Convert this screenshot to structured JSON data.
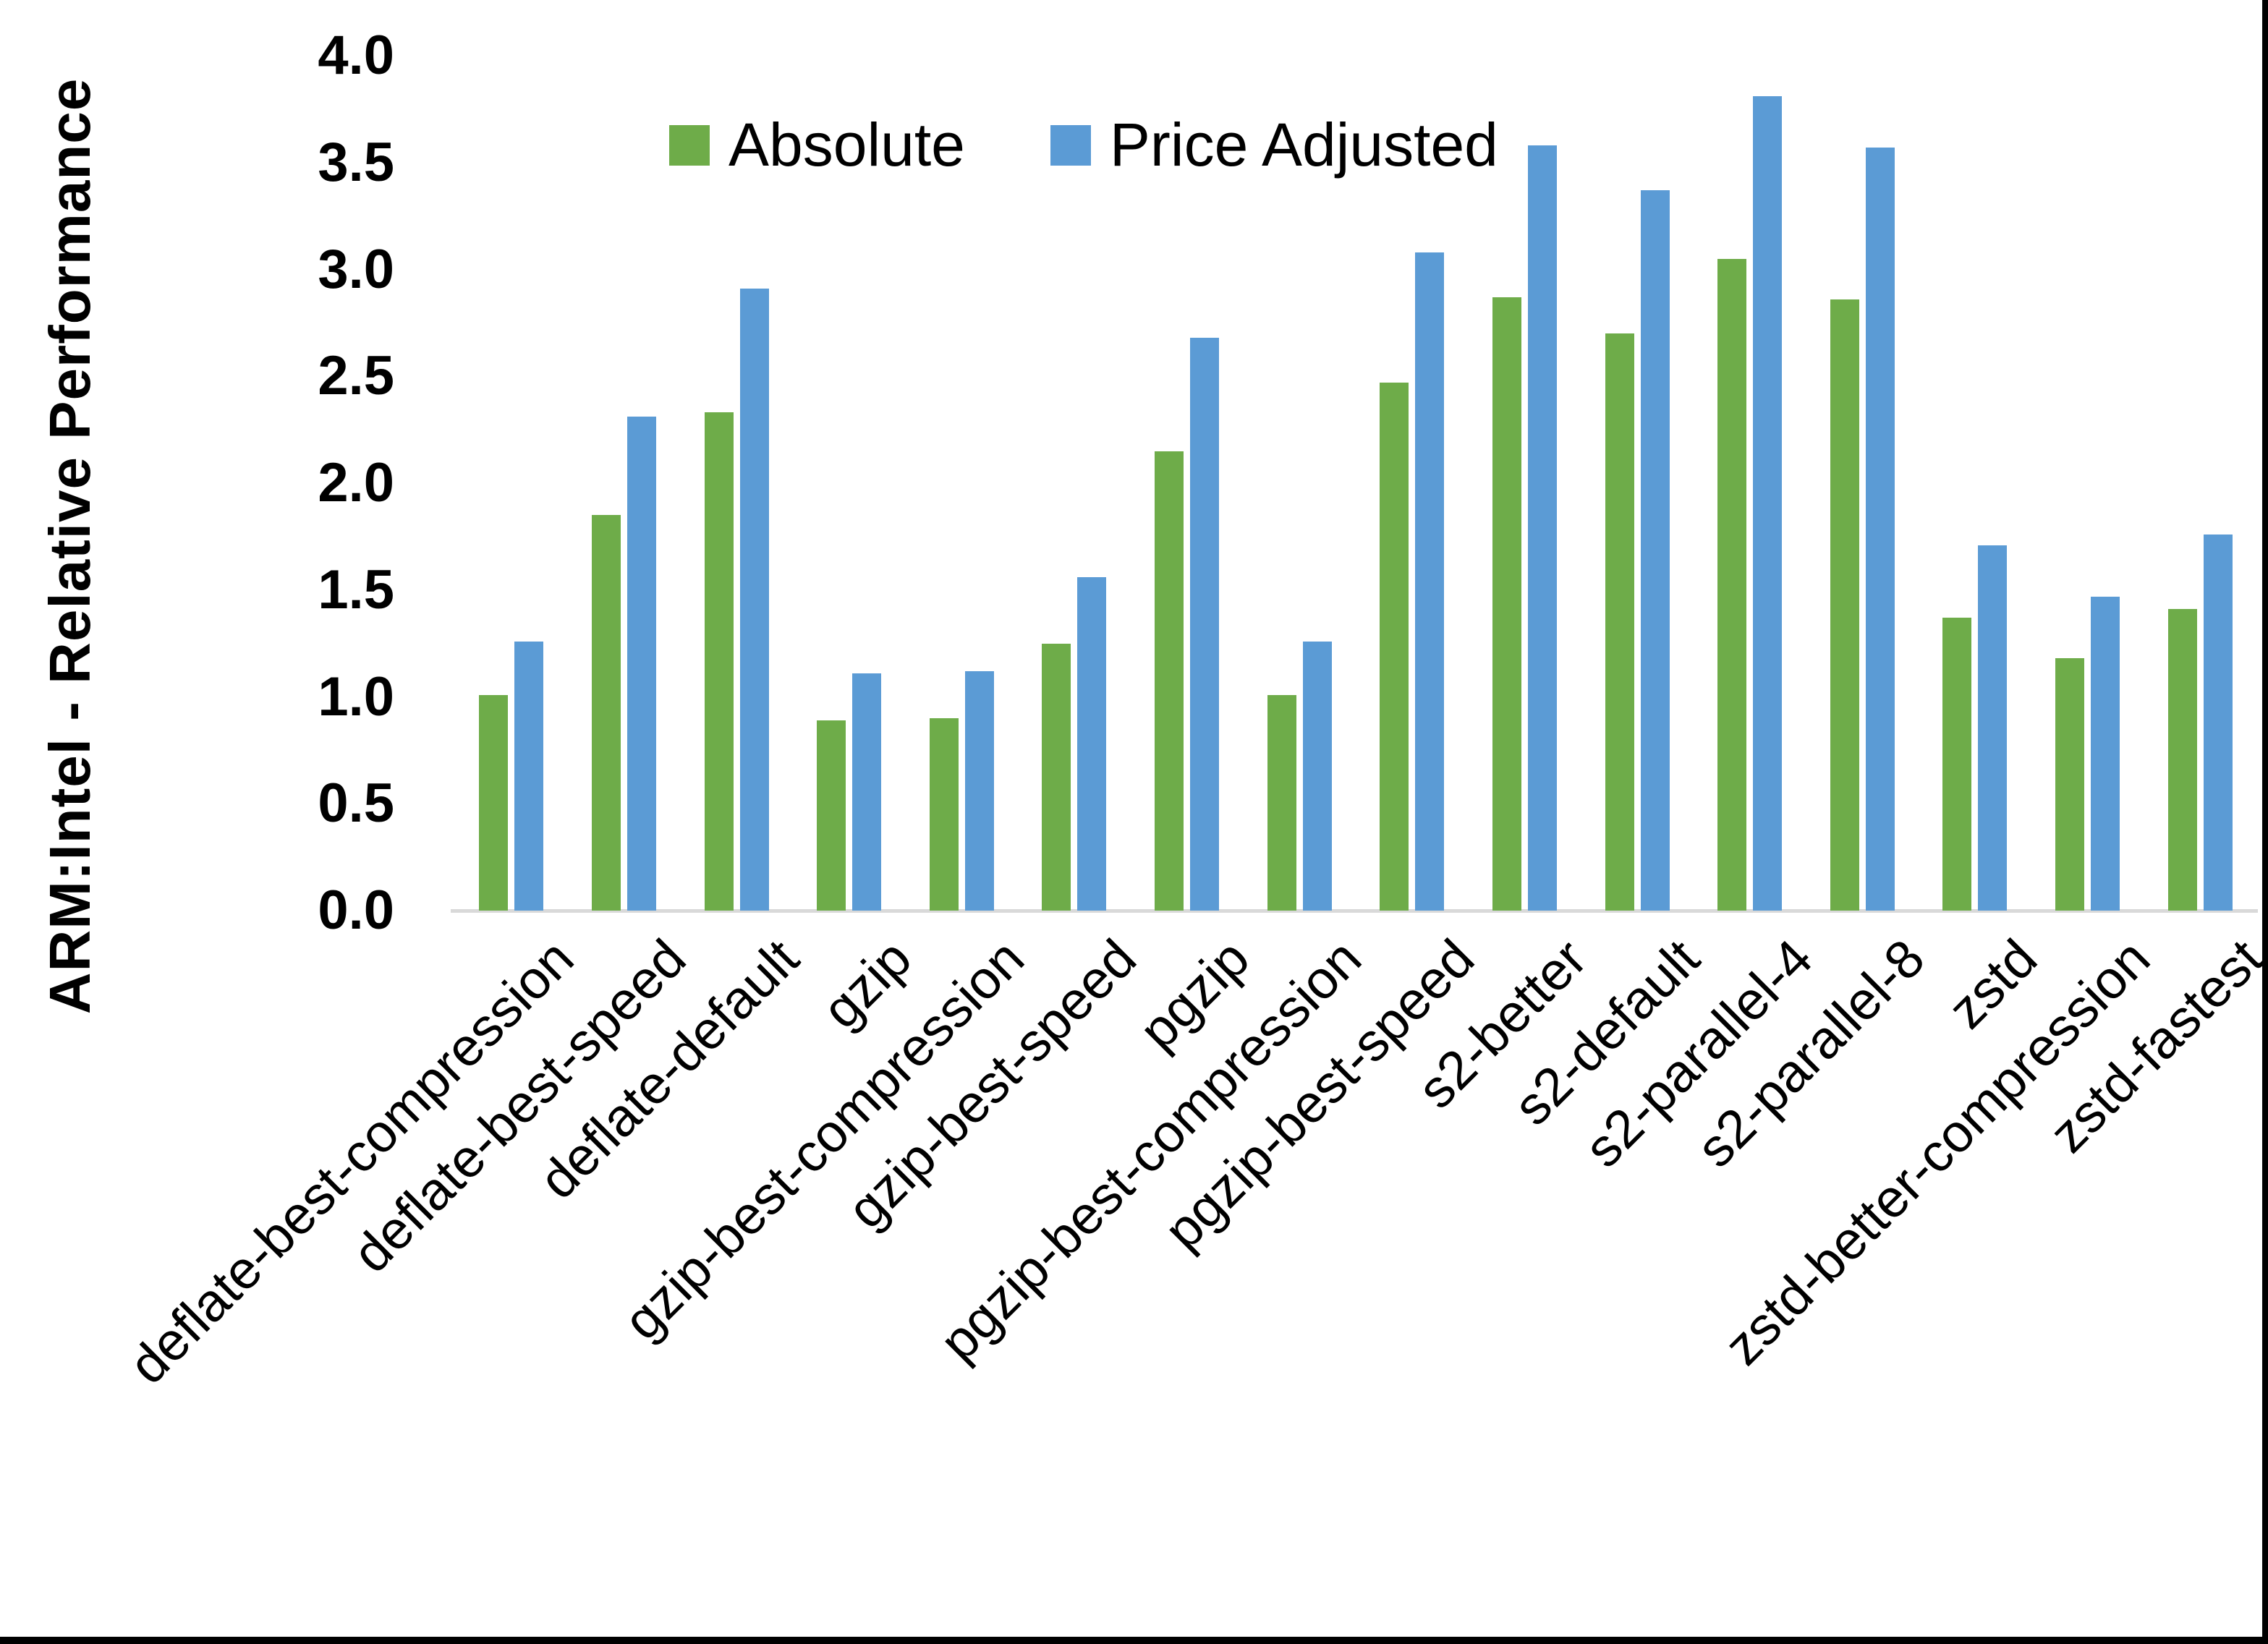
{
  "chart_data": {
    "type": "bar",
    "title": "",
    "ylabel": "ARM:Intel - Relative Performance",
    "xlabel": "",
    "ylim": [
      0.0,
      4.0
    ],
    "ytick_step": 0.5,
    "ytick_labels": [
      "0.0",
      "0.5",
      "1.0",
      "1.5",
      "2.0",
      "2.5",
      "3.0",
      "3.5",
      "4.0"
    ],
    "grid": false,
    "legend_position": "top-inside",
    "categories": [
      "deflate-best-compression",
      "deflate-best-speed",
      "deflate-default",
      "gzip",
      "gzip-best-compression",
      "gzip-best-speed",
      "pgzip",
      "pgzip-best-compression",
      "pgzip-best-speed",
      "s2-better",
      "s2-default",
      "s2-parallel-4",
      "s2-parallel-8",
      "zstd",
      "zstd-better-compression",
      "zstd-fastest"
    ],
    "series": [
      {
        "name": "Absolute",
        "color": "#6EAC49",
        "values": [
          1.01,
          1.85,
          2.33,
          0.89,
          0.9,
          1.25,
          2.15,
          1.01,
          2.47,
          2.87,
          2.7,
          3.05,
          2.86,
          1.37,
          1.18,
          1.41
        ]
      },
      {
        "name": "Price Adjusted",
        "color": "#5B9BD5",
        "values": [
          1.26,
          2.31,
          2.91,
          1.11,
          1.12,
          1.56,
          2.68,
          1.26,
          3.08,
          3.58,
          3.37,
          3.81,
          3.57,
          1.71,
          1.47,
          1.76
        ]
      }
    ]
  },
  "style": {
    "background": "#FFFFFF",
    "axis_line_color": "#D9D9D9",
    "text_color": "#000000",
    "edge_border_color": "#000000"
  }
}
